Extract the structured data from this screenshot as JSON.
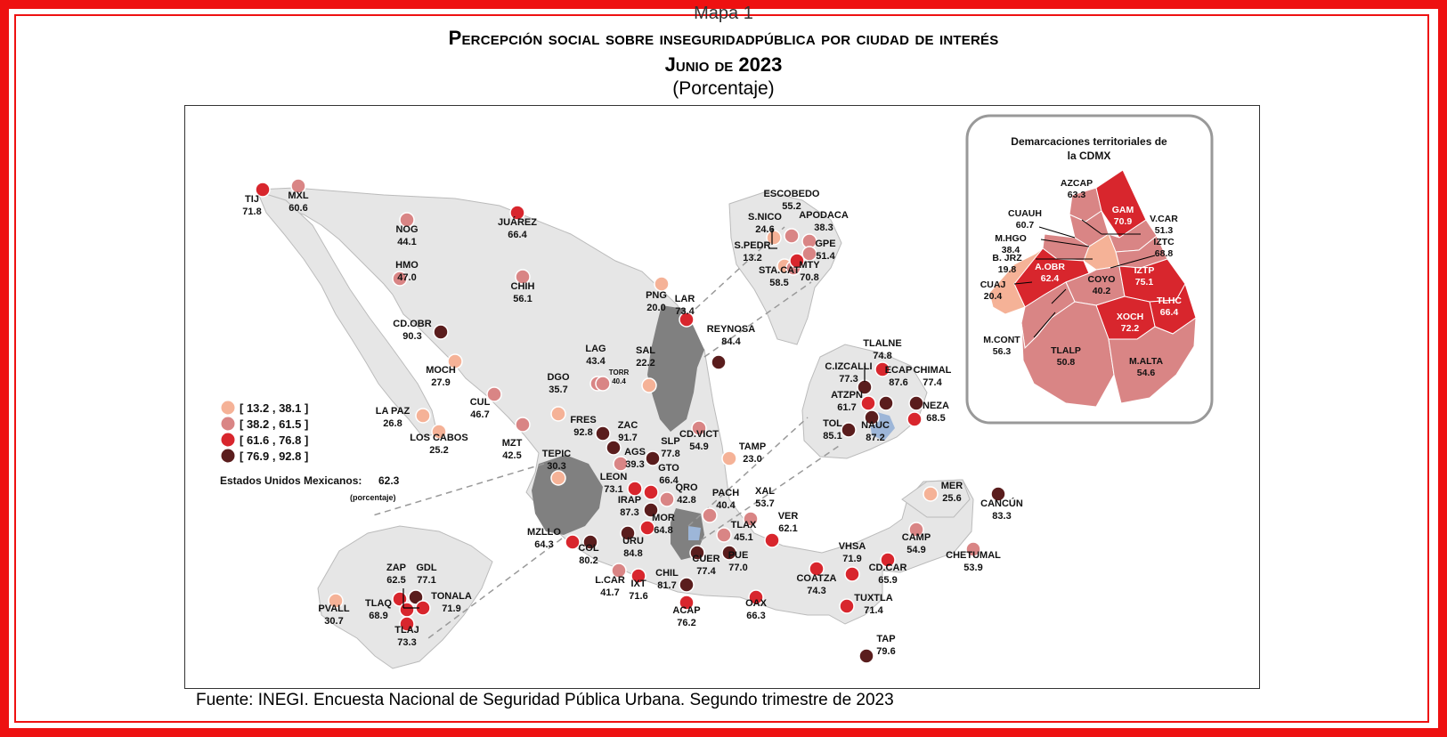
{
  "title": {
    "kicker": "Mapa 1",
    "main": "Percepción social sobre inseguridadpública por ciudad de interés",
    "date": "Junio de 2023",
    "unit": "(Porcentaje)"
  },
  "source": "Fuente: INEGI. Encuesta Nacional de Seguridad Pública Urbana. Segundo trimestre de 2023",
  "legend": {
    "classes": [
      {
        "label": "[ 13.2 , 38.1 ]",
        "color": "#f5b297"
      },
      {
        "label": "[ 38.2 , 61.5 ]",
        "color": "#d98585"
      },
      {
        "label": "[ 61.6 , 76.8 ]",
        "color": "#d8262d"
      },
      {
        "label": "[ 76.9 , 92.8 ]",
        "color": "#5a1d1d"
      }
    ],
    "national_label": "Estados Unidos Mexicanos:",
    "national_value": "62.3",
    "national_unit": "(porcentaje)"
  },
  "colors": {
    "land": "#e6e6e6",
    "highlight_state": "#808080",
    "cdmx_area": "#9db6d8",
    "border": "#bbbbbb"
  },
  "cities": [
    {
      "name": "TIJ",
      "value": "71.8"
    },
    {
      "name": "MXL",
      "value": "60.6"
    },
    {
      "name": "NOG",
      "value": "44.1"
    },
    {
      "name": "JUÁREZ",
      "value": "66.4"
    },
    {
      "name": "HMO",
      "value": "47.0"
    },
    {
      "name": "CHIH",
      "value": "56.1"
    },
    {
      "name": "CD.OBR",
      "value": "90.3"
    },
    {
      "name": "MOCH",
      "value": "27.9"
    },
    {
      "name": "LA PAZ",
      "value": "26.8"
    },
    {
      "name": "LOS CABOS",
      "value": "25.2"
    },
    {
      "name": "CUL",
      "value": "46.7"
    },
    {
      "name": "MZT",
      "value": "42.5"
    },
    {
      "name": "DGO",
      "value": "35.7"
    },
    {
      "name": "LAG",
      "value": "43.4"
    },
    {
      "name": "TORR",
      "value": "40.4"
    },
    {
      "name": "SAL",
      "value": "22.2"
    },
    {
      "name": "PNG",
      "value": "20.0"
    },
    {
      "name": "LAR",
      "value": "73.4"
    },
    {
      "name": "REYNOSA",
      "value": "84.4"
    },
    {
      "name": "ESCOBEDO",
      "value": "55.2"
    },
    {
      "name": "S.NICO",
      "value": "24.6"
    },
    {
      "name": "APODACA",
      "value": "38.3"
    },
    {
      "name": "S.PEDR",
      "value": "13.2"
    },
    {
      "name": "GPE",
      "value": "51.4"
    },
    {
      "name": "STA.CAT",
      "value": "58.5"
    },
    {
      "name": "MTY",
      "value": "70.8"
    },
    {
      "name": "FRES",
      "value": "92.8"
    },
    {
      "name": "ZAC",
      "value": "91.7"
    },
    {
      "name": "TEPIC",
      "value": "30.3"
    },
    {
      "name": "AGS",
      "value": "39.3"
    },
    {
      "name": "SLP",
      "value": "77.8"
    },
    {
      "name": "CD.VICT",
      "value": "54.9"
    },
    {
      "name": "TAMP",
      "value": "23.0"
    },
    {
      "name": "LEON",
      "value": "73.1"
    },
    {
      "name": "GTO",
      "value": "66.4"
    },
    {
      "name": "QRO",
      "value": "42.8"
    },
    {
      "name": "IRAP",
      "value": "87.3"
    },
    {
      "name": "MOR",
      "value": "64.8"
    },
    {
      "name": "PACH",
      "value": "40.4"
    },
    {
      "name": "XAL",
      "value": "53.7"
    },
    {
      "name": "MZLLO",
      "value": "64.3"
    },
    {
      "name": "COL",
      "value": "80.2"
    },
    {
      "name": "URU",
      "value": "84.8"
    },
    {
      "name": "TLAX",
      "value": "45.1"
    },
    {
      "name": "VER",
      "value": "62.1"
    },
    {
      "name": "CUER",
      "value": "77.4"
    },
    {
      "name": "PUE",
      "value": "77.0"
    },
    {
      "name": "L.CAR",
      "value": "41.7"
    },
    {
      "name": "IXT",
      "value": "71.6"
    },
    {
      "name": "CHIL",
      "value": "81.7"
    },
    {
      "name": "ACAP",
      "value": "76.2"
    },
    {
      "name": "OAX",
      "value": "66.3"
    },
    {
      "name": "COATZA",
      "value": "74.3"
    },
    {
      "name": "VHSA",
      "value": "71.9"
    },
    {
      "name": "CD.CAR",
      "value": "65.9"
    },
    {
      "name": "CAMP",
      "value": "54.9"
    },
    {
      "name": "MER",
      "value": "25.6"
    },
    {
      "name": "CANCÚN",
      "value": "83.3"
    },
    {
      "name": "CHETUMAL",
      "value": "53.9"
    },
    {
      "name": "TUXTLA",
      "value": "71.4"
    },
    {
      "name": "TAP",
      "value": "79.6"
    },
    {
      "name": "TLALNE",
      "value": "74.8"
    },
    {
      "name": "C.IZCALLI",
      "value": "77.3"
    },
    {
      "name": "ECAP",
      "value": "87.6"
    },
    {
      "name": "CHIMAL",
      "value": "77.4"
    },
    {
      "name": "ATZPN",
      "value": "61.7"
    },
    {
      "name": "NEZA",
      "value": "68.5"
    },
    {
      "name": "TOL",
      "value": "85.1"
    },
    {
      "name": "NAUC",
      "value": "87.2"
    },
    {
      "name": "ZAP",
      "value": "62.5"
    },
    {
      "name": "GDL",
      "value": "77.1"
    },
    {
      "name": "TONALA",
      "value": "71.9"
    },
    {
      "name": "TLAQ",
      "value": "68.9"
    },
    {
      "name": "TLAJ",
      "value": "73.3"
    },
    {
      "name": "PVALL",
      "value": "30.7"
    }
  ],
  "cdmx": {
    "title_line1": "Demarcaciones territoriales de",
    "title_line2": "la CDMX",
    "items": [
      {
        "name": "AZCAP",
        "value": "63.3"
      },
      {
        "name": "GAM",
        "value": "70.9"
      },
      {
        "name": "CUAUH",
        "value": "60.7"
      },
      {
        "name": "V.CAR",
        "value": "51.3"
      },
      {
        "name": "M.HGO",
        "value": "38.4"
      },
      {
        "name": "IZTC",
        "value": "68.8"
      },
      {
        "name": "B. JRZ",
        "value": "19.8"
      },
      {
        "name": "A.OBR",
        "value": "62.4"
      },
      {
        "name": "COYO",
        "value": "40.2"
      },
      {
        "name": "IZTP",
        "value": "75.1"
      },
      {
        "name": "CUAJ",
        "value": "20.4"
      },
      {
        "name": "TLHC",
        "value": "66.4"
      },
      {
        "name": "XOCH",
        "value": "72.2"
      },
      {
        "name": "M.CONT",
        "value": "56.3"
      },
      {
        "name": "TLALP",
        "value": "50.8"
      },
      {
        "name": "M.ALTA",
        "value": "54.6"
      }
    ]
  }
}
